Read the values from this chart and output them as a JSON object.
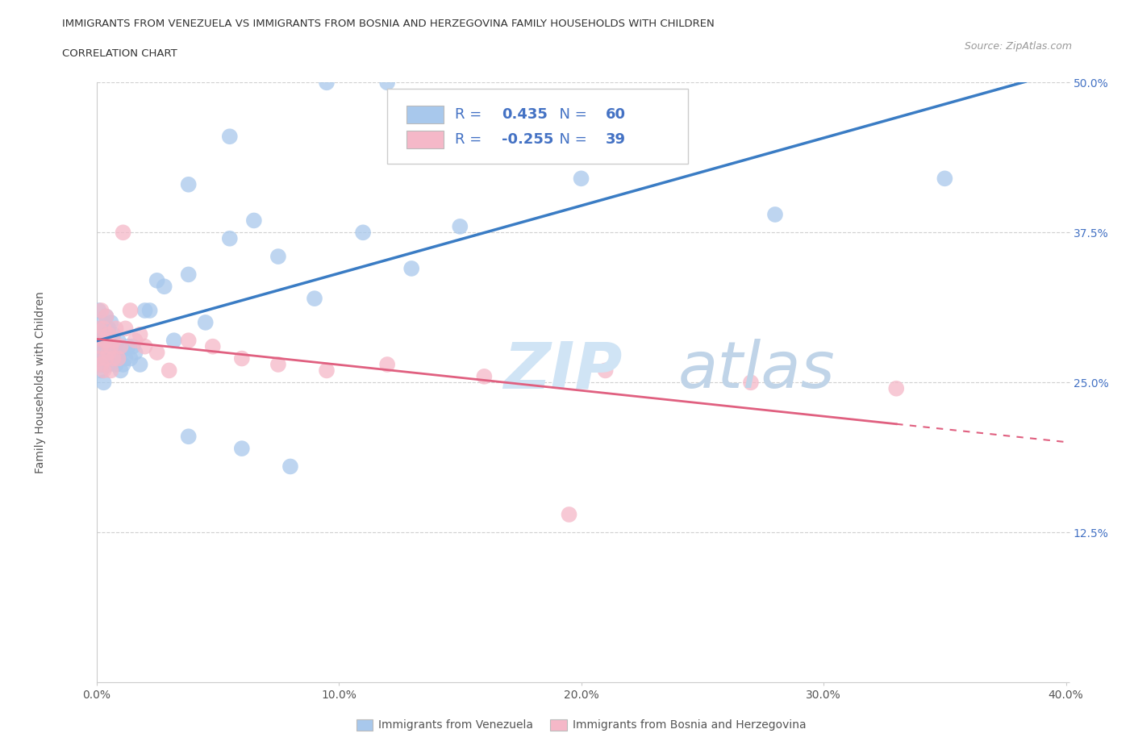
{
  "title_line1": "IMMIGRANTS FROM VENEZUELA VS IMMIGRANTS FROM BOSNIA AND HERZEGOVINA FAMILY HOUSEHOLDS WITH CHILDREN",
  "title_line2": "CORRELATION CHART",
  "source": "Source: ZipAtlas.com",
  "ylabel": "Family Households with Children",
  "xlim": [
    0.0,
    0.4
  ],
  "ylim": [
    0.0,
    0.5
  ],
  "xtick_vals": [
    0.0,
    0.1,
    0.2,
    0.3,
    0.4
  ],
  "xtick_labels": [
    "0.0%",
    "10.0%",
    "20.0%",
    "30.0%",
    "40.0%"
  ],
  "ytick_vals": [
    0.0,
    0.125,
    0.25,
    0.375,
    0.5
  ],
  "ytick_labels": [
    "",
    "12.5%",
    "25.0%",
    "37.5%",
    "50.0%"
  ],
  "venezuela_R": 0.435,
  "venezuela_N": 60,
  "bosnia_R": -0.255,
  "bosnia_N": 39,
  "venezuela_color": "#A8C8EC",
  "venezuela_line_color": "#3A7CC4",
  "bosnia_color": "#F5B8C8",
  "bosnia_line_color": "#E06080",
  "legend_text_color": "#4472C4",
  "watermark_zip_color": "#D8E8F5",
  "watermark_atlas_color": "#C8D8E8",
  "background_color": "#ffffff",
  "venezuela_x": [
    0.001,
    0.001,
    0.001,
    0.002,
    0.002,
    0.002,
    0.002,
    0.003,
    0.003,
    0.003,
    0.003,
    0.004,
    0.004,
    0.004,
    0.004,
    0.005,
    0.005,
    0.005,
    0.006,
    0.006,
    0.006,
    0.007,
    0.007,
    0.008,
    0.008,
    0.009,
    0.009,
    0.01,
    0.01,
    0.011,
    0.012,
    0.013,
    0.014,
    0.015,
    0.016,
    0.018,
    0.02,
    0.022,
    0.025,
    0.028,
    0.032,
    0.038,
    0.045,
    0.055,
    0.065,
    0.075,
    0.09,
    0.11,
    0.13,
    0.15,
    0.038,
    0.06,
    0.08,
    0.12,
    0.2,
    0.28,
    0.35,
    0.095,
    0.055,
    0.038
  ],
  "venezuela_y": [
    0.27,
    0.285,
    0.31,
    0.265,
    0.28,
    0.295,
    0.26,
    0.275,
    0.285,
    0.3,
    0.25,
    0.27,
    0.285,
    0.295,
    0.305,
    0.265,
    0.28,
    0.295,
    0.27,
    0.285,
    0.3,
    0.275,
    0.29,
    0.265,
    0.28,
    0.27,
    0.285,
    0.26,
    0.275,
    0.265,
    0.27,
    0.28,
    0.27,
    0.28,
    0.275,
    0.265,
    0.31,
    0.31,
    0.335,
    0.33,
    0.285,
    0.34,
    0.3,
    0.37,
    0.385,
    0.355,
    0.32,
    0.375,
    0.345,
    0.38,
    0.415,
    0.195,
    0.18,
    0.55,
    0.42,
    0.39,
    0.42,
    0.5,
    0.455,
    0.205
  ],
  "bosnia_x": [
    0.001,
    0.001,
    0.002,
    0.002,
    0.002,
    0.003,
    0.003,
    0.003,
    0.004,
    0.004,
    0.004,
    0.005,
    0.005,
    0.006,
    0.006,
    0.007,
    0.007,
    0.008,
    0.009,
    0.01,
    0.011,
    0.012,
    0.014,
    0.016,
    0.018,
    0.02,
    0.025,
    0.03,
    0.038,
    0.048,
    0.06,
    0.075,
    0.095,
    0.12,
    0.16,
    0.21,
    0.27,
    0.33,
    0.195
  ],
  "bosnia_y": [
    0.27,
    0.295,
    0.265,
    0.28,
    0.31,
    0.26,
    0.285,
    0.295,
    0.27,
    0.285,
    0.305,
    0.275,
    0.29,
    0.26,
    0.28,
    0.27,
    0.285,
    0.295,
    0.27,
    0.28,
    0.375,
    0.295,
    0.31,
    0.285,
    0.29,
    0.28,
    0.275,
    0.26,
    0.285,
    0.28,
    0.27,
    0.265,
    0.26,
    0.265,
    0.255,
    0.26,
    0.25,
    0.245,
    0.14
  ]
}
